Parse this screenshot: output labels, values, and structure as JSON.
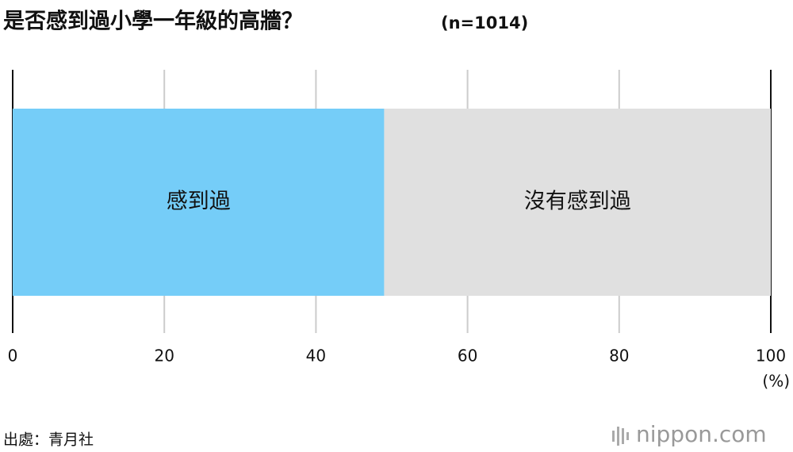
{
  "chart_data": {
    "type": "stacked-bar-horizontal",
    "title": "是否感到過小學一年級的高牆？",
    "note": "(n=1014)",
    "series": [
      {
        "name": "感到過",
        "color": "#75cdf8",
        "values": [
          49
        ]
      },
      {
        "name": "沒有感到過",
        "color": "#e0e0e0",
        "values": [
          51
        ]
      }
    ],
    "xlim": [
      0,
      100
    ],
    "xticks": [
      0,
      20,
      40,
      60,
      80,
      100
    ],
    "xlabel": "(%)",
    "grid": true,
    "source": "出處：青月社",
    "logo": "nippon.com"
  }
}
